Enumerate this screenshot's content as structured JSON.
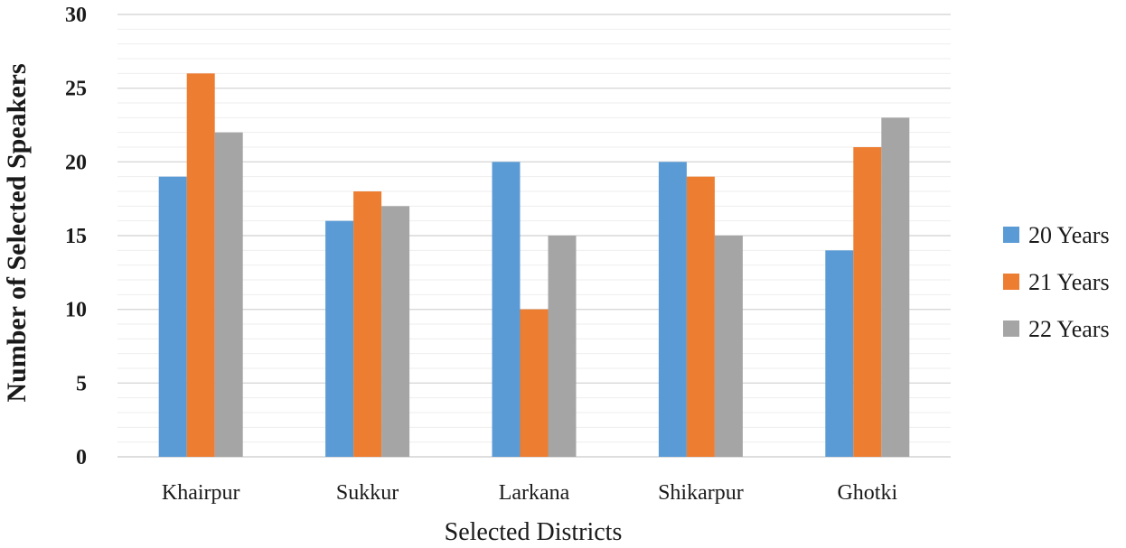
{
  "chart_data": {
    "type": "bar",
    "title": "",
    "xlabel": "Selected Districts",
    "ylabel": "Number of Selected Speakers",
    "ylim": [
      0,
      30
    ],
    "ytick_step": 5,
    "minor_gridlines": true,
    "legend_position": "right",
    "categories": [
      "Khairpur",
      "Sukkur",
      "Larkana",
      "Shikarpur",
      "Ghotki"
    ],
    "series": [
      {
        "name": "20 Years",
        "color": "#5b9bd5",
        "values": [
          19,
          16,
          20,
          20,
          14
        ]
      },
      {
        "name": "21 Years",
        "color": "#ed7d31",
        "values": [
          26,
          18,
          10,
          19,
          21
        ]
      },
      {
        "name": "22 Years",
        "color": "#a5a5a5",
        "values": [
          22,
          17,
          15,
          15,
          23
        ]
      }
    ]
  }
}
